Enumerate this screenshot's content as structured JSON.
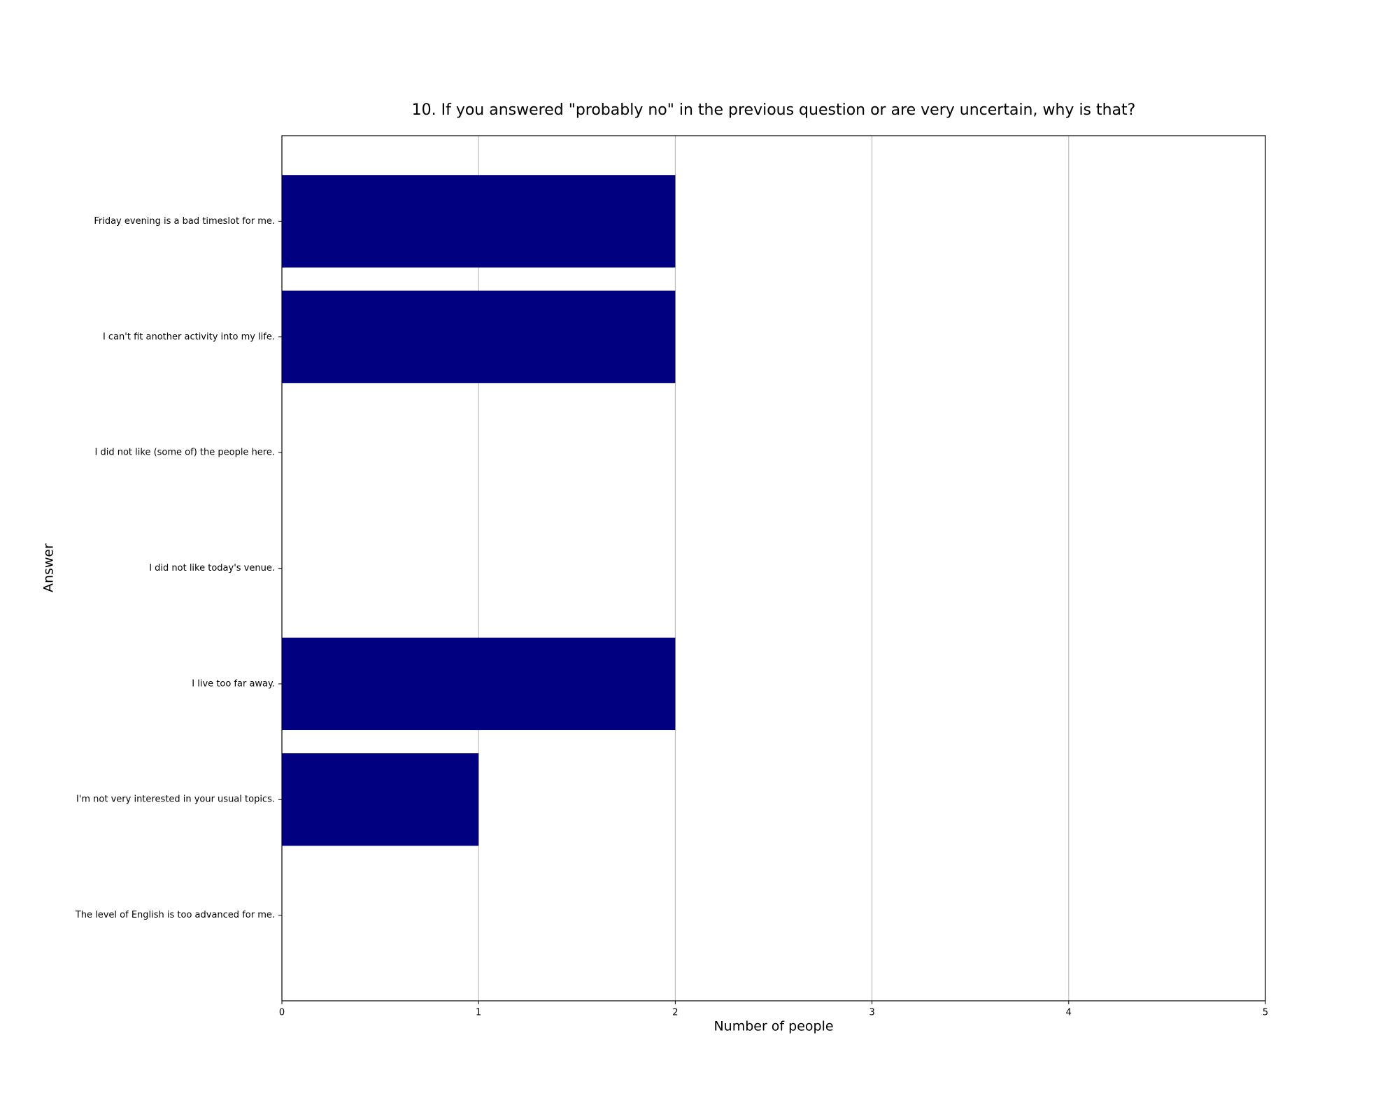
{
  "chart_data": {
    "type": "barh",
    "title": "10. If you answered \"probably no\" in the previous question or are very uncertain, why is that?",
    "x_label": "Number of people",
    "y_label": "Answer",
    "categories": [
      "Friday evening is a bad timeslot for me.",
      "I can't fit another activity into my life.",
      "I did not like (some of) the people here.",
      "I did not like today's venue.",
      "I live too far away.",
      "I'm not very interested in your usual topics.",
      "The level of English is too advanced for me."
    ],
    "values": [
      2,
      2,
      0,
      0,
      2,
      1,
      0
    ],
    "color": "#000080",
    "xlim": [
      0,
      5
    ],
    "xticks": [
      0,
      1,
      2,
      3,
      4,
      5
    ],
    "grid": true
  }
}
